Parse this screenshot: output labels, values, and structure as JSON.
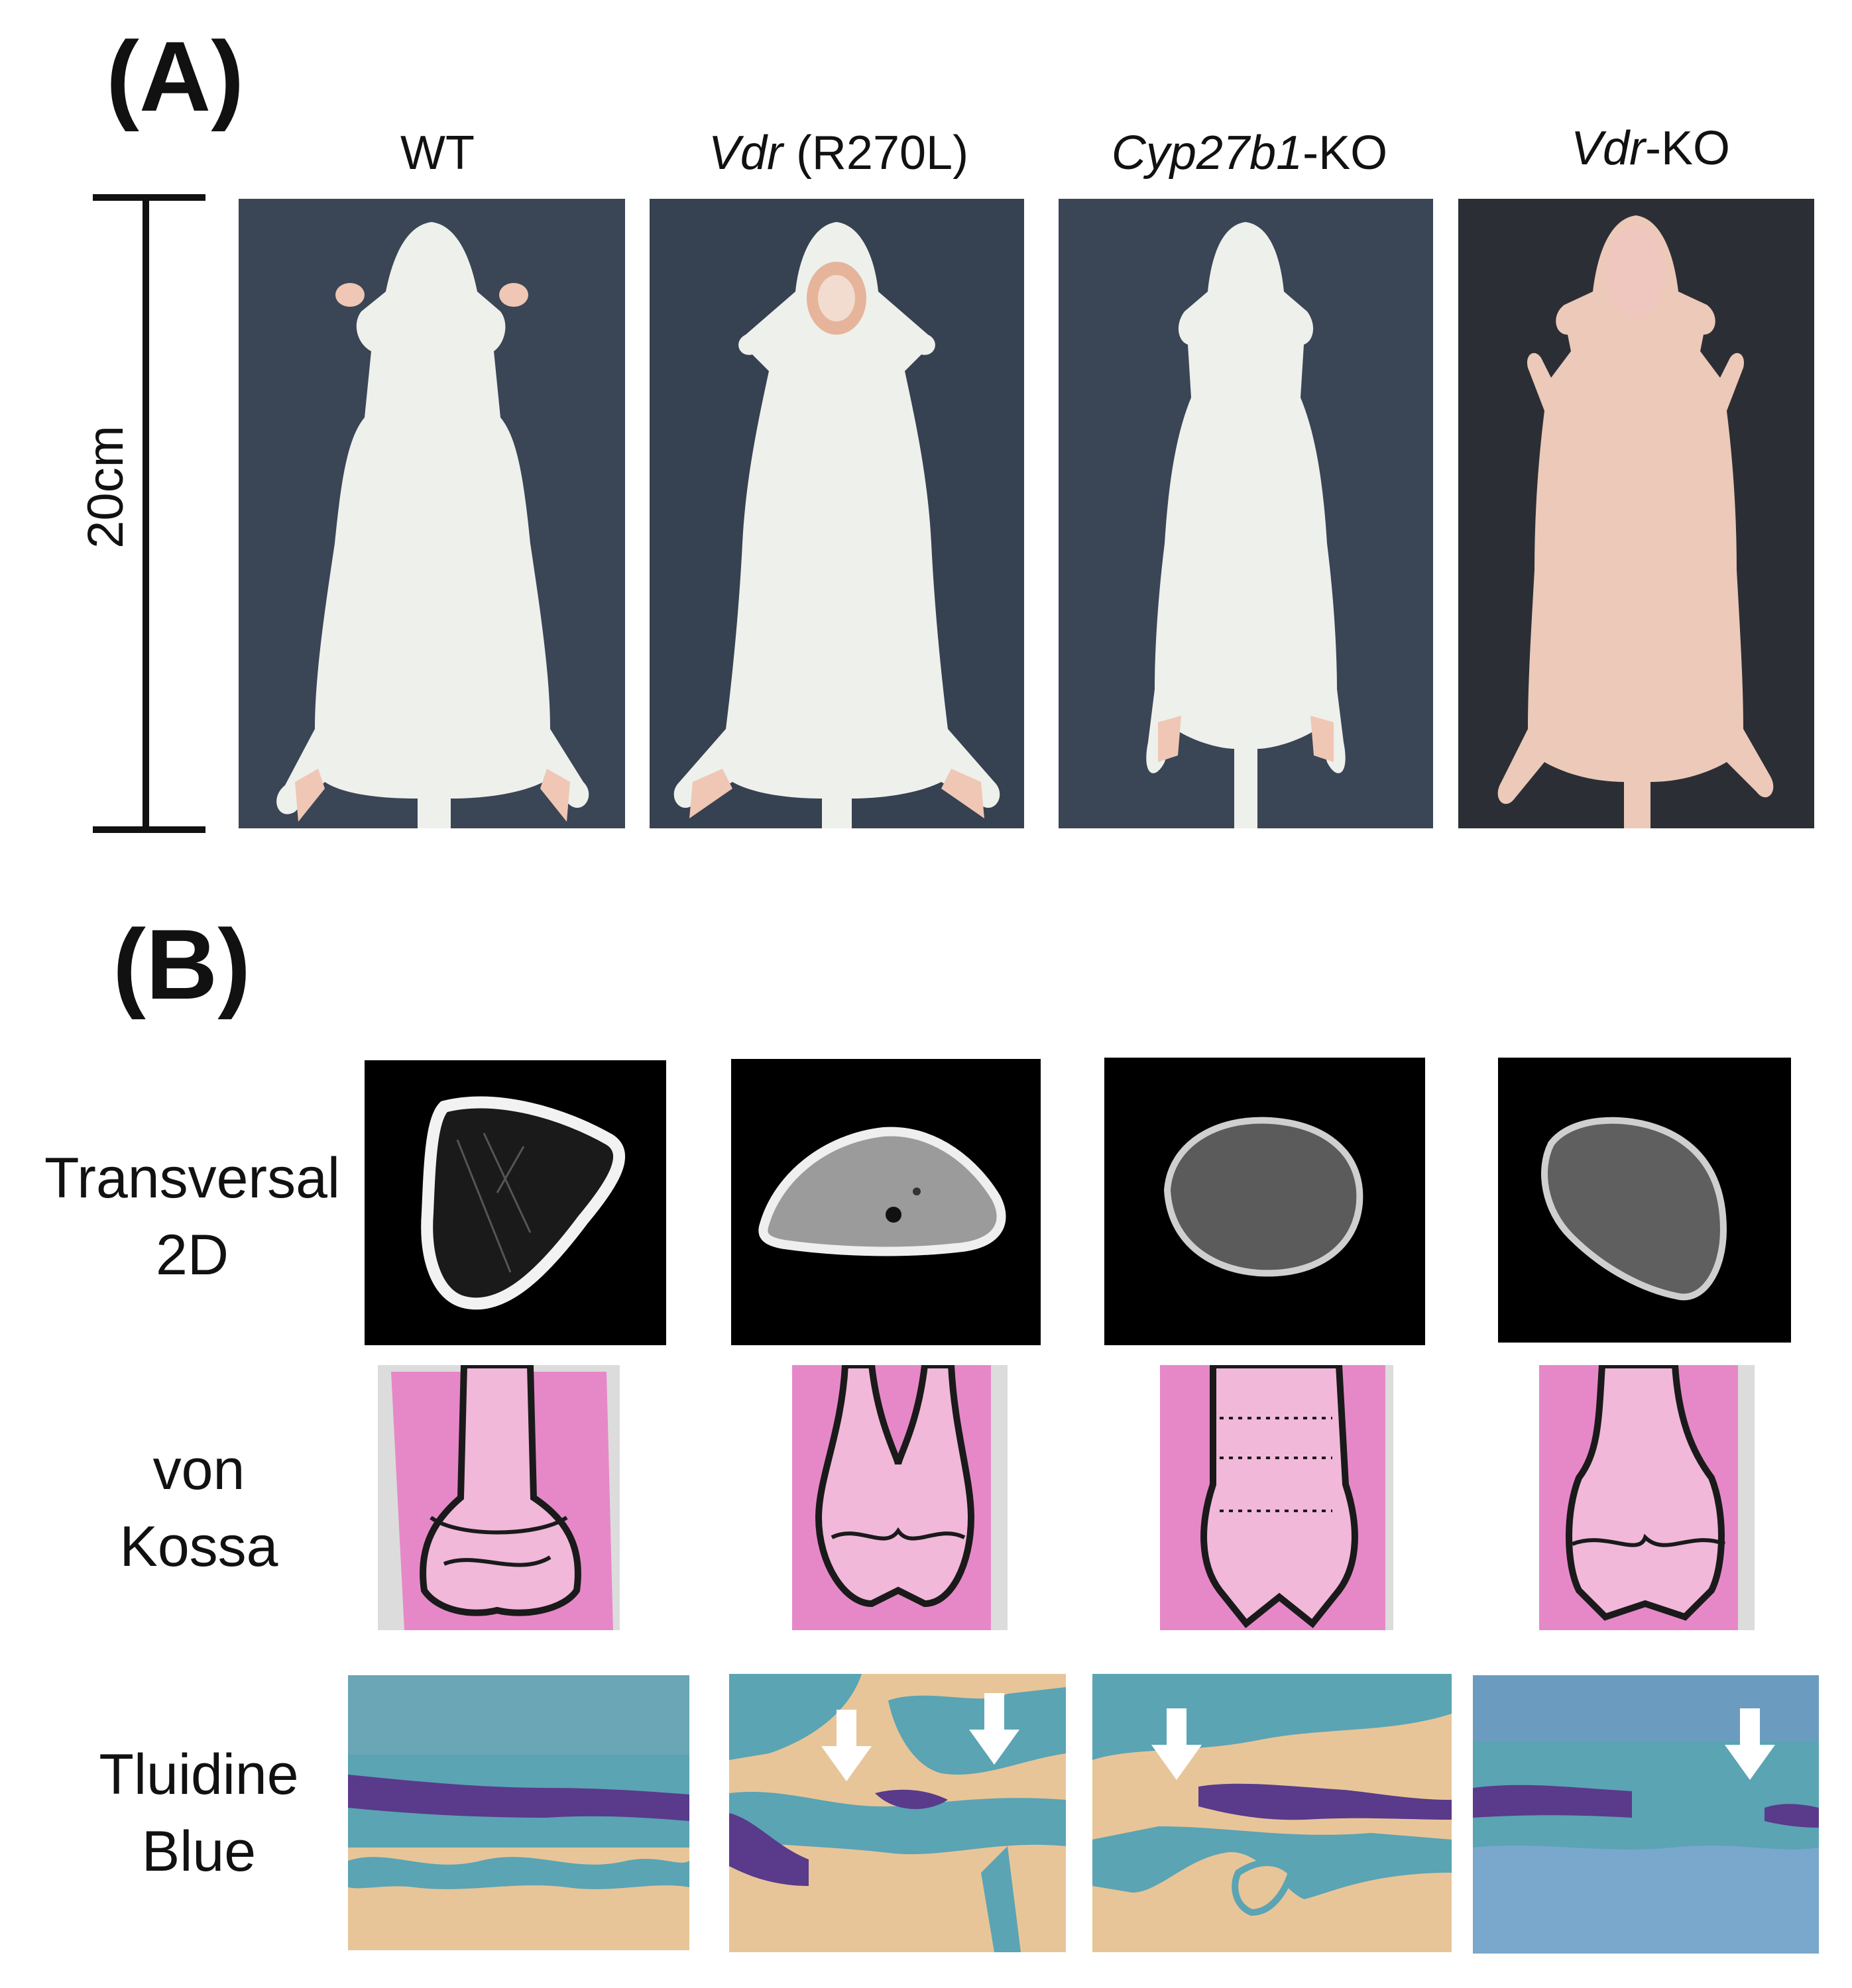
{
  "panelA": {
    "label": "(A)",
    "scale_label": "20cm",
    "columns": [
      {
        "italic": "",
        "plain": "WT"
      },
      {
        "italic": "Vdr",
        "plain": " (R270L)"
      },
      {
        "italic": "Cyp27b1",
        "plain": "-KO"
      },
      {
        "italic": "Vdr",
        "plain": "-KO"
      }
    ]
  },
  "panelB": {
    "label": "(B)",
    "rows": [
      {
        "line1": "Transversal",
        "line2": "2D"
      },
      {
        "line1": "von",
        "line2": "Kossa"
      },
      {
        "line1": "Tluidine",
        "line2": "Blue"
      }
    ]
  },
  "colors": {
    "photo_bg": "#3a4556",
    "photo_bg_dark": "#2b2f35",
    "rat_white": "#eef0ec",
    "rat_pink": "#efc7b4",
    "vk_pink": "#e688c8",
    "tb_blue": "#5aa4b4",
    "tb_purple": "#5a3a8a",
    "tb_orange": "#e8c598"
  }
}
